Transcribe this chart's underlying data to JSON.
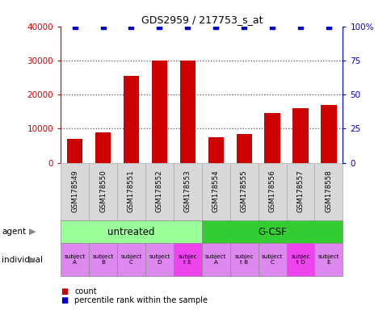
{
  "title": "GDS2959 / 217753_s_at",
  "samples": [
    "GSM178549",
    "GSM178550",
    "GSM178551",
    "GSM178552",
    "GSM178553",
    "GSM178554",
    "GSM178555",
    "GSM178556",
    "GSM178557",
    "GSM178558"
  ],
  "counts": [
    7000,
    9000,
    25500,
    30000,
    30000,
    7500,
    8500,
    14500,
    16000,
    17000
  ],
  "percentile": [
    100,
    100,
    100,
    100,
    100,
    100,
    100,
    100,
    100,
    100
  ],
  "bar_color": "#cc0000",
  "dot_color": "#0000cc",
  "ylim_left": [
    0,
    40000
  ],
  "ylim_right": [
    0,
    100
  ],
  "yticks_left": [
    0,
    10000,
    20000,
    30000,
    40000
  ],
  "yticks_right": [
    0,
    25,
    50,
    75,
    100
  ],
  "yticklabels_right": [
    "0",
    "25",
    "50",
    "75",
    "100%"
  ],
  "agent_groups": [
    {
      "label": "untreated",
      "start": 0,
      "end": 5,
      "color": "#99ff99"
    },
    {
      "label": "G-CSF",
      "start": 5,
      "end": 10,
      "color": "#33cc33"
    }
  ],
  "individuals": [
    {
      "label": "subject\nA",
      "color": "#dd88ee"
    },
    {
      "label": "subject\nB",
      "color": "#dd88ee"
    },
    {
      "label": "subject\nC",
      "color": "#dd88ee"
    },
    {
      "label": "subject\nD",
      "color": "#dd88ee"
    },
    {
      "label": "subjec\nt E",
      "color": "#ee44ee"
    },
    {
      "label": "subject\nA",
      "color": "#dd88ee"
    },
    {
      "label": "subjec\nt B",
      "color": "#dd88ee"
    },
    {
      "label": "subject\nC",
      "color": "#dd88ee"
    },
    {
      "label": "subjec\nt D",
      "color": "#ee44ee"
    },
    {
      "label": "subject\nE",
      "color": "#dd88ee"
    }
  ],
  "legend_count_color": "#cc0000",
  "legend_dot_color": "#0000cc",
  "background_color": "#ffffff",
  "sample_box_color": "#d8d8d8",
  "sample_box_edge": "#aaaaaa",
  "grid_color": "#555555",
  "left_label_color": "#555555",
  "arrow_color": "#888888"
}
